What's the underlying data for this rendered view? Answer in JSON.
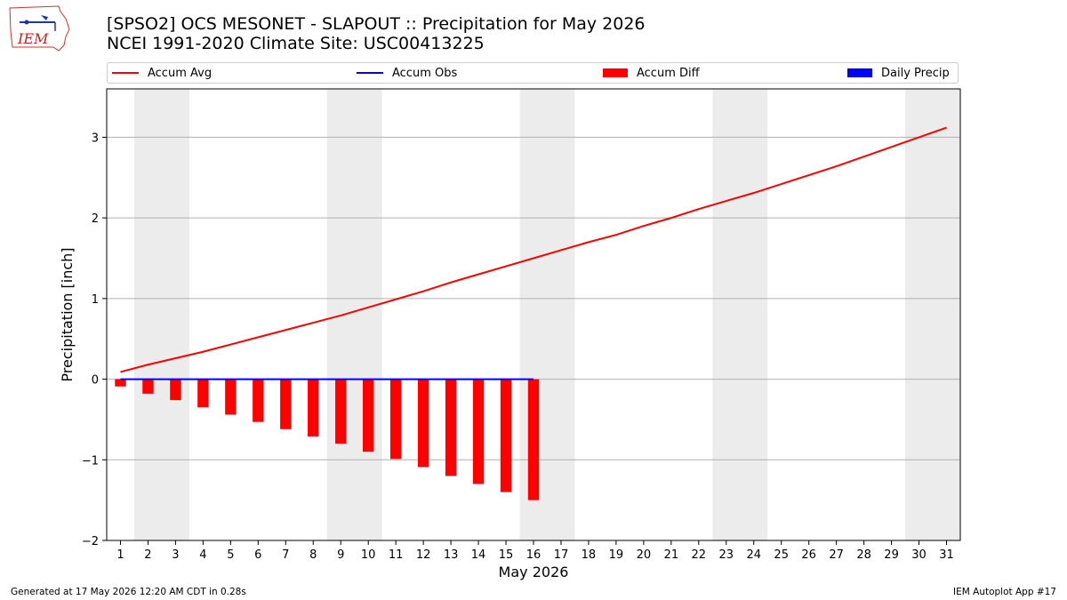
{
  "logo": {
    "text": "IEM"
  },
  "header": {
    "title_line1": "[SPSO2] OCS MESONET - SLAPOUT :: Precipitation for May 2026",
    "title_line2": "NCEI 1991-2020 Climate Site: USC00413225"
  },
  "legend": {
    "items": [
      {
        "label": "Accum Avg",
        "color": "#ff0000",
        "kind": "line"
      },
      {
        "label": "Accum Obs",
        "color": "#0000ff",
        "kind": "line"
      },
      {
        "label": "Accum Diff",
        "color": "#ff0000",
        "kind": "bar"
      },
      {
        "label": "Daily Precip",
        "color": "#0000ff",
        "kind": "bar"
      }
    ]
  },
  "chart_data": {
    "type": "line",
    "xlabel": "May 2026",
    "ylabel": "Precipitation [inch]",
    "xlim": [
      0.5,
      31.5
    ],
    "ylim": [
      -2,
      3.6
    ],
    "x_ticks": [
      1,
      2,
      3,
      4,
      5,
      6,
      7,
      8,
      9,
      10,
      11,
      12,
      13,
      14,
      15,
      16,
      17,
      18,
      19,
      20,
      21,
      22,
      23,
      24,
      25,
      26,
      27,
      28,
      29,
      30,
      31
    ],
    "y_ticks": [
      {
        "value": -2,
        "label": "−2"
      },
      {
        "value": -1,
        "label": "−1"
      },
      {
        "value": 0,
        "label": "0"
      },
      {
        "value": 1,
        "label": "1"
      },
      {
        "value": 2,
        "label": "2"
      },
      {
        "value": 3,
        "label": "3"
      }
    ],
    "grid": "horizontal",
    "weekend_shading": [
      [
        1.5,
        3.5
      ],
      [
        8.5,
        10.5
      ],
      [
        15.5,
        17.5
      ],
      [
        22.5,
        24.5
      ],
      [
        29.5,
        31.5
      ]
    ],
    "series": [
      {
        "name": "Accum Avg",
        "kind": "line",
        "color": "#ff0000",
        "x": [
          1,
          2,
          3,
          4,
          5,
          6,
          7,
          8,
          9,
          10,
          11,
          12,
          13,
          14,
          15,
          16,
          17,
          18,
          19,
          20,
          21,
          22,
          23,
          24,
          25,
          26,
          27,
          28,
          29,
          30,
          31
        ],
        "values": [
          0.09,
          0.18,
          0.26,
          0.34,
          0.43,
          0.52,
          0.61,
          0.7,
          0.79,
          0.89,
          0.99,
          1.09,
          1.2,
          1.3,
          1.4,
          1.5,
          1.6,
          1.7,
          1.79,
          1.9,
          2.0,
          2.11,
          2.21,
          2.31,
          2.42,
          2.53,
          2.64,
          2.76,
          2.88,
          3.0,
          3.12
        ]
      },
      {
        "name": "Accum Obs",
        "kind": "line",
        "color": "#0000ff",
        "x": [
          1,
          2,
          3,
          4,
          5,
          6,
          7,
          8,
          9,
          10,
          11,
          12,
          13,
          14,
          15,
          16
        ],
        "values": [
          0,
          0,
          0,
          0,
          0,
          0,
          0,
          0,
          0,
          0,
          0,
          0,
          0,
          0,
          0,
          0
        ]
      },
      {
        "name": "Accum Diff",
        "kind": "bar",
        "color": "#ff0000",
        "x": [
          1,
          2,
          3,
          4,
          5,
          6,
          7,
          8,
          9,
          10,
          11,
          12,
          13,
          14,
          15,
          16
        ],
        "values": [
          -0.09,
          -0.18,
          -0.26,
          -0.35,
          -0.44,
          -0.53,
          -0.62,
          -0.71,
          -0.8,
          -0.9,
          -0.99,
          -1.09,
          -1.2,
          -1.3,
          -1.4,
          -1.5
        ]
      },
      {
        "name": "Daily Precip",
        "kind": "bar",
        "color": "#0000ff",
        "x": [],
        "values": []
      }
    ]
  },
  "footer": {
    "left": "Generated at 17 May 2026 12:20 AM CDT in 0.28s",
    "right": "IEM Autoplot App #17"
  }
}
